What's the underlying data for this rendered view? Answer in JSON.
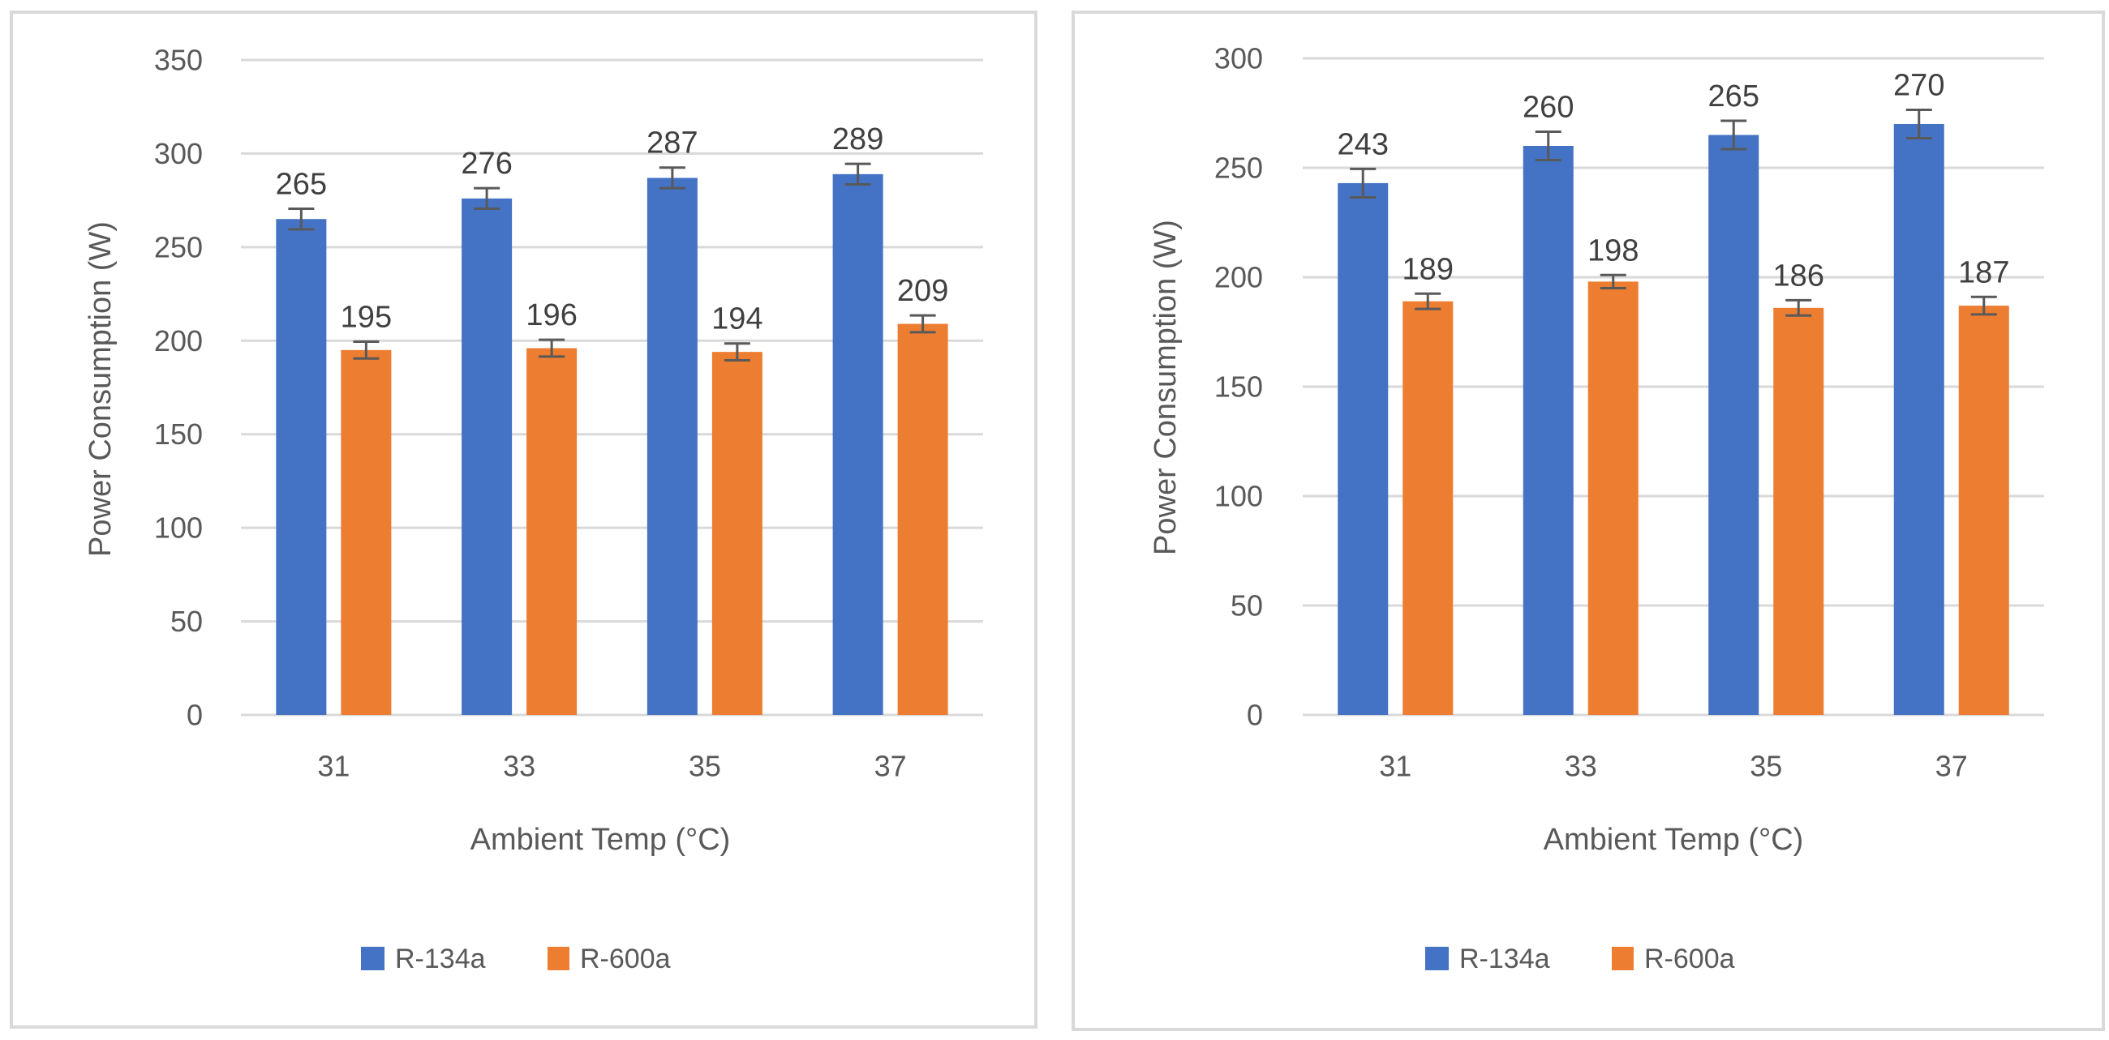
{
  "chart_data": [
    {
      "type": "bar",
      "title": "",
      "categories": [
        "31",
        "33",
        "35",
        "37"
      ],
      "series": [
        {
          "name": "R-134a",
          "color": "#4472C4",
          "values": [
            265,
            276,
            287,
            289
          ],
          "error": [
            5.5,
            5.5,
            5.5,
            5.5
          ]
        },
        {
          "name": "R-600a",
          "color": "#ED7D31",
          "values": [
            195,
            196,
            194,
            209
          ],
          "error": [
            4.5,
            4.5,
            4.5,
            4.5
          ]
        }
      ],
      "xlabel": "Ambient Temp (°C)",
      "ylabel": "Power Consumption (W)",
      "ylim": [
        0,
        350
      ],
      "yticks": [
        0,
        50,
        100,
        150,
        200,
        250,
        300,
        350
      ],
      "grid": true,
      "legend": "bottom"
    },
    {
      "type": "bar",
      "title": "",
      "categories": [
        "31",
        "33",
        "35",
        "37"
      ],
      "series": [
        {
          "name": "R-134a",
          "color": "#4472C4",
          "values": [
            243,
            260,
            265,
            270
          ],
          "error": [
            6.5,
            6.5,
            6.5,
            6.5
          ]
        },
        {
          "name": "R-600a",
          "color": "#ED7D31",
          "values": [
            189,
            198,
            186,
            187
          ],
          "error": [
            3.5,
            3,
            3.5,
            4
          ]
        }
      ],
      "xlabel": "Ambient Temp (°C)",
      "ylabel": "Power Consumption (W)",
      "ylim": [
        0,
        300
      ],
      "yticks": [
        0,
        50,
        100,
        150,
        200,
        250,
        300
      ],
      "grid": true,
      "legend": "bottom"
    }
  ]
}
